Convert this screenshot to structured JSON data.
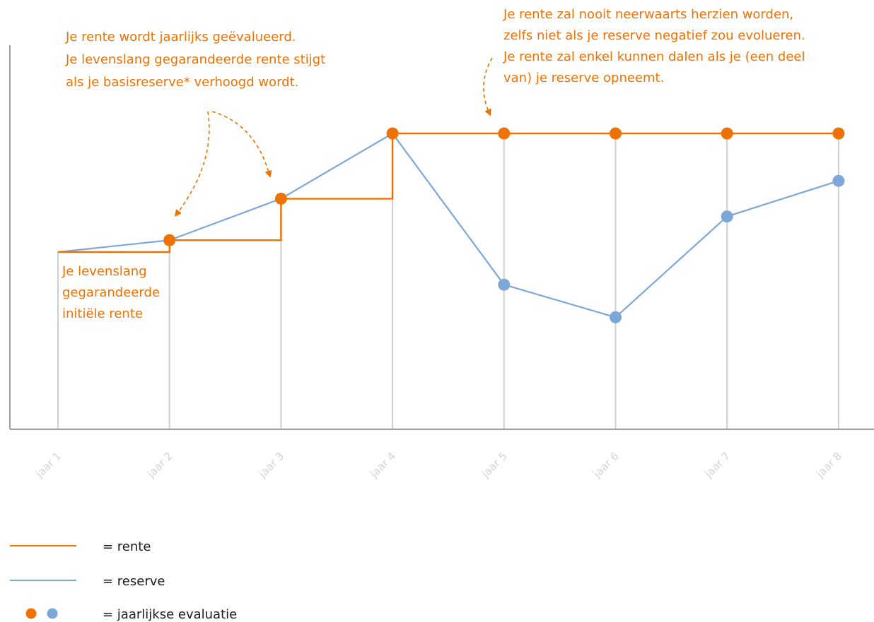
{
  "colors": {
    "rente": "#ee7203",
    "reserve": "#7da7d9",
    "grid": "#cfcfcf",
    "axis": "#9e9e9e",
    "tick": "#d3d3d3",
    "background": "#ffffff"
  },
  "annotations": {
    "top_left": [
      "Je rente wordt jaarlijks geëvalueerd.",
      "Je levenslang gegarandeerde rente stijgt",
      "als je basisreserve* verhoogd wordt."
    ],
    "top_right": [
      "Je rente zal nooit neerwaarts herzien worden,",
      "zelfs niet als je reserve negatief zou evolueren.",
      "Je rente zal enkel kunnen dalen als je (een deel",
      "van) je reserve opneemt."
    ],
    "initial": [
      "Je levenslang",
      "gegarandeerde",
      "initiële rente"
    ]
  },
  "legend": {
    "rente": "= rente",
    "reserve": "= reserve",
    "evaluatie": "= jaarlijkse evaluatie"
  },
  "chart_data": {
    "type": "line",
    "title": "",
    "xlabel": "",
    "ylabel": "",
    "categories": [
      "jaar 1",
      "jaar 2",
      "jaar 3",
      "jaar 4",
      "jaar 5",
      "jaar 6",
      "jaar 7",
      "jaar 8"
    ],
    "ylim": [
      0,
      100
    ],
    "grid": "vertical",
    "y_ticks_shown": false,
    "series": [
      {
        "name": "rente",
        "line_style": "step",
        "color": "#ee7203",
        "values": [
          60,
          64,
          78,
          100,
          100,
          100,
          100,
          100
        ],
        "markers": [
          false,
          true,
          true,
          true,
          true,
          true,
          true,
          true
        ]
      },
      {
        "name": "reserve",
        "line_style": "straight",
        "color": "#7da7d9",
        "values": [
          60,
          64,
          78,
          100,
          49,
          38,
          72,
          84
        ],
        "markers": [
          false,
          false,
          false,
          false,
          true,
          true,
          true,
          true
        ]
      }
    ]
  }
}
